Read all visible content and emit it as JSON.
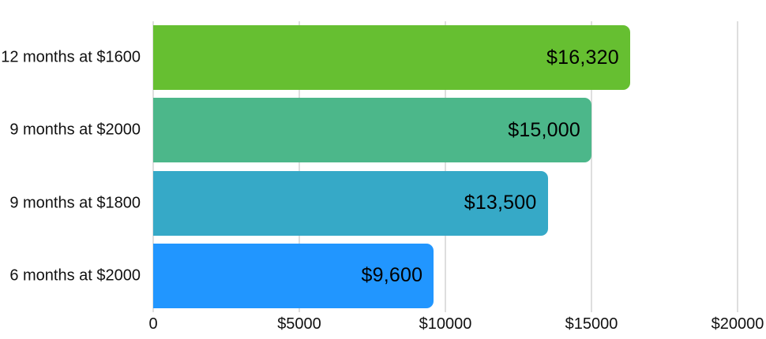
{
  "chart_data": {
    "type": "bar",
    "orientation": "horizontal",
    "title": "",
    "xlabel": "",
    "ylabel": "",
    "categories": [
      "12 months at $1600",
      "9 months at $2000",
      "9 months at $1800",
      "6 months at $2000"
    ],
    "values": [
      16320,
      15000,
      13500,
      9600
    ],
    "value_labels": [
      "$16,320",
      "$15,000",
      "$13,500",
      "$9,600"
    ],
    "bar_colors": [
      "#66bf31",
      "#4cb78a",
      "#36a9c7",
      "#2196ff"
    ],
    "xlim": [
      0,
      20000
    ],
    "x_ticks": [
      {
        "value": 0,
        "label": "0"
      },
      {
        "value": 5000,
        "label": "$5000"
      },
      {
        "value": 10000,
        "label": "$10000"
      },
      {
        "value": 15000,
        "label": "$15000"
      },
      {
        "value": 20000,
        "label": "$20000"
      }
    ],
    "grid": true,
    "gridline_color": "#dedede",
    "legend_position": "none",
    "background_color": "#ffffff",
    "value_label_color": "#000000",
    "axis_label_color": "#111111"
  }
}
